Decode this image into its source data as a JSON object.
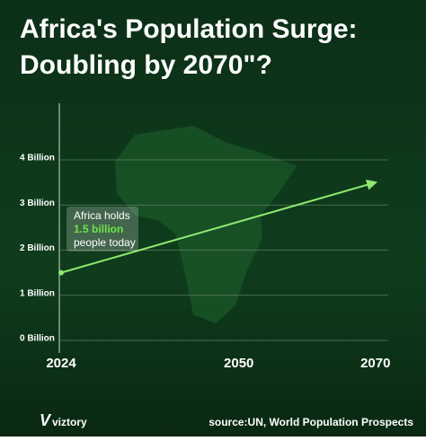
{
  "chart_data": {
    "type": "line",
    "title": [
      "Africa's Population Surge:",
      "Doubling by 2070\"?"
    ],
    "x": [
      2024,
      2070
    ],
    "values": [
      1.5,
      3.5
    ],
    "color": "#8fe870",
    "xlim": [
      2024,
      2072
    ],
    "xticks": [
      2024,
      2050,
      2070
    ],
    "ylim": [
      0,
      4
    ],
    "yticks": [
      {
        "value": 0,
        "label": "0 Billion"
      },
      {
        "value": 1,
        "label": "1 Billion"
      },
      {
        "value": 2,
        "label": "2 Billion"
      },
      {
        "value": 3,
        "label": "3 Billion"
      },
      {
        "value": 4,
        "label": "4 Billion"
      }
    ],
    "grid": true,
    "annotation": [
      "Africa holds",
      "1.5 billion",
      "people today"
    ]
  },
  "footer": {
    "brand": "viztory",
    "source": "source:UN, World Population Prospects"
  }
}
